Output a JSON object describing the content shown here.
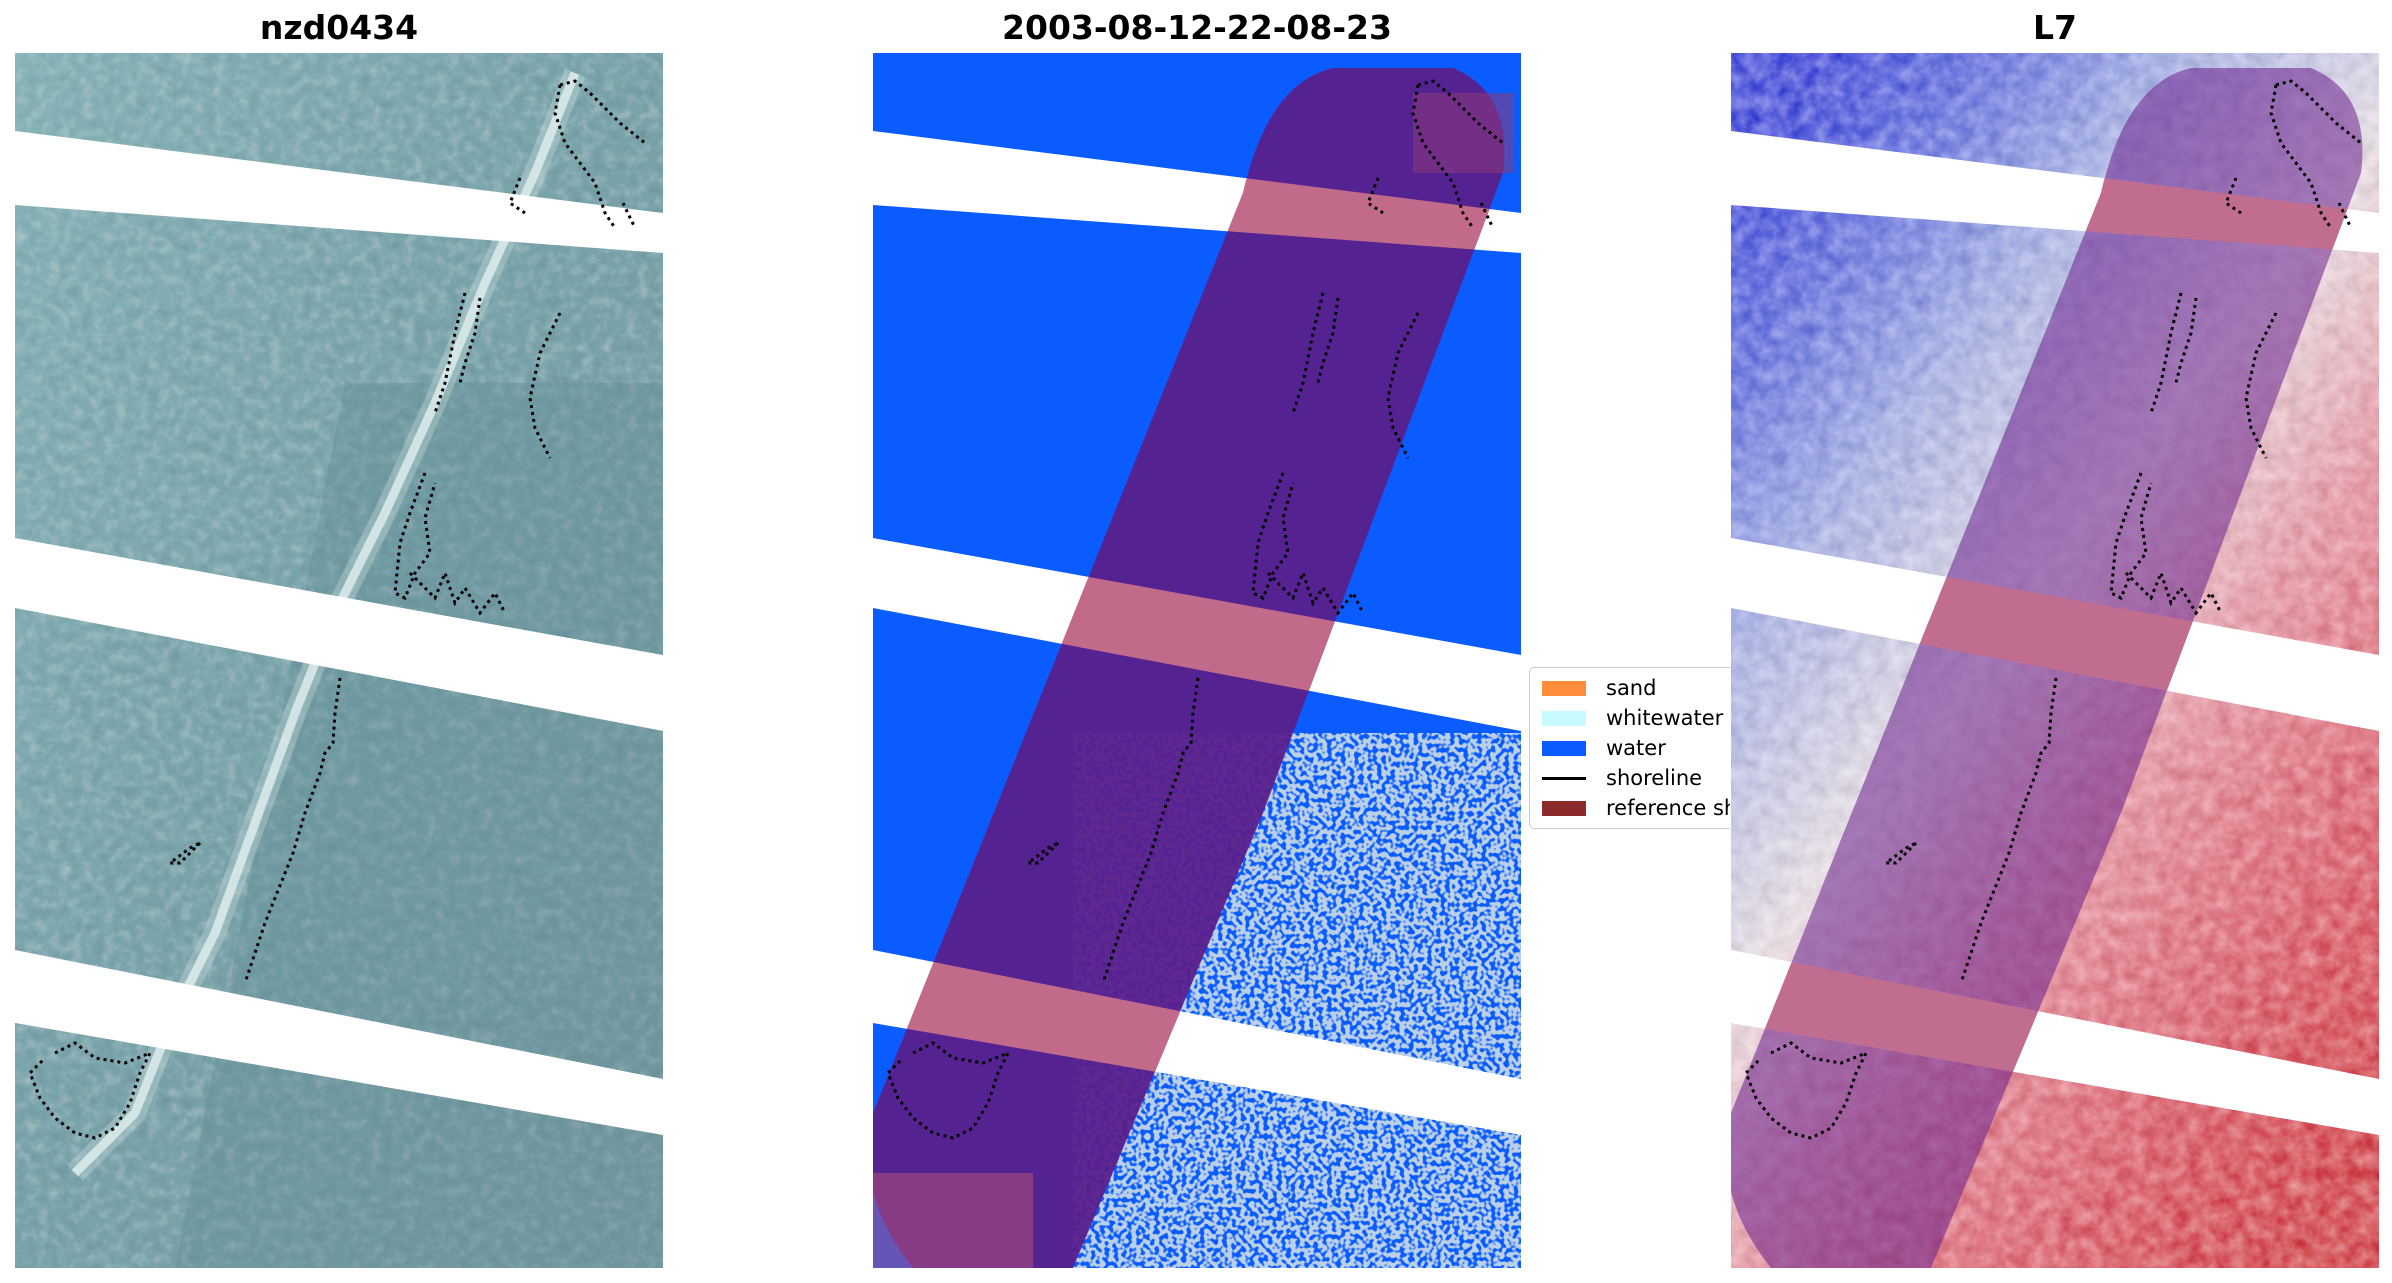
{
  "panels": [
    {
      "title": "nzd0434"
    },
    {
      "title": "2003-08-12-22-08-23"
    },
    {
      "title": "L7"
    }
  ],
  "legend": {
    "items": [
      {
        "label": "sand",
        "color": "#ff8c3a",
        "kind": "patch"
      },
      {
        "label": "whitewater",
        "color": "#c8fbff",
        "kind": "patch"
      },
      {
        "label": "water",
        "color": "#0a5cff",
        "kind": "patch"
      },
      {
        "label": "shoreline",
        "color": "#000000",
        "kind": "line"
      },
      {
        "label": "reference shoreline",
        "color": "#8b2a2a",
        "kind": "patch"
      }
    ]
  },
  "colors": {
    "rgb_base": "#7fa8ad",
    "class_water": "#0a5cff",
    "buffer_overlay": "#5a1f8c",
    "missing_data": "#ffffff",
    "index_positive": "#e0102a",
    "index_negative": "#1030e0"
  }
}
